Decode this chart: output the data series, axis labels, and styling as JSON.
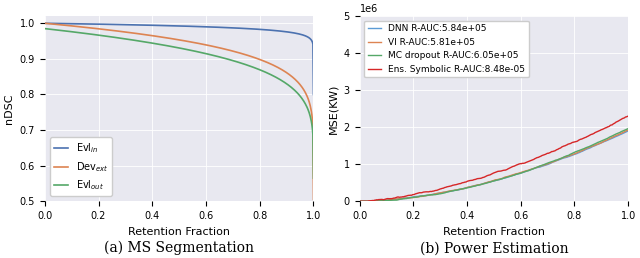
{
  "fig_width": 6.4,
  "fig_height": 2.58,
  "dpi": 100,
  "subplot_a": {
    "xlabel": "Retention Fraction",
    "ylabel": "nDSC",
    "ylim": [
      0.5,
      1.02
    ],
    "xlim": [
      0.0,
      1.0
    ],
    "yticks": [
      0.5,
      0.6,
      0.7,
      0.8,
      0.9,
      1.0
    ],
    "xticks": [
      0.0,
      0.2,
      0.4,
      0.6,
      0.8,
      1.0
    ],
    "bg_color": "#e8e8f0",
    "caption": "(a) MS Segmentation",
    "lines": [
      {
        "label": "Evl$_{in}$",
        "color": "#4c72b0"
      },
      {
        "label": "Dev$_{ext}$",
        "color": "#dd8452"
      },
      {
        "label": "Evl$_{out}$",
        "color": "#55a868"
      }
    ],
    "legend_loc": "lower left",
    "legend_fontsize": 7,
    "line_params": [
      [
        18.0,
        1.0,
        0.8
      ],
      [
        7.0,
        1.0,
        0.505
      ],
      [
        5.0,
        0.985,
        0.565
      ]
    ]
  },
  "subplot_b": {
    "xlabel": "Retention Fraction",
    "ylabel": "MSE(KW)",
    "ylim": [
      0,
      5000000
    ],
    "xlim": [
      0.0,
      1.0
    ],
    "yticks": [
      0,
      1000000,
      2000000,
      3000000,
      4000000,
      5000000
    ],
    "ytick_labels": [
      "0",
      "1",
      "2",
      "3",
      "4",
      "5"
    ],
    "xticks": [
      0.0,
      0.2,
      0.4,
      0.6,
      0.8,
      1.0
    ],
    "bg_color": "#e8e8f0",
    "caption": "(b) Power Estimation",
    "lines": [
      {
        "label": "DNN R-AUC:5.84e+05",
        "color": "#5b9bd5"
      },
      {
        "label": "VI R-AUC:5.81e+05",
        "color": "#dd8452"
      },
      {
        "label": "MC dropout R-AUC:6.05e+05",
        "color": "#55a868"
      },
      {
        "label": "Ens. Symbolic R-AUC:8.48e-05",
        "color": "#d62728"
      }
    ],
    "legend_loc": "upper left",
    "legend_fontsize": 6.5,
    "line_params": [
      [
        1.8,
        1900000,
        0
      ],
      [
        1.8,
        1930000,
        0
      ],
      [
        1.85,
        1970000,
        0
      ],
      [
        1.6,
        2280000,
        0
      ]
    ]
  }
}
